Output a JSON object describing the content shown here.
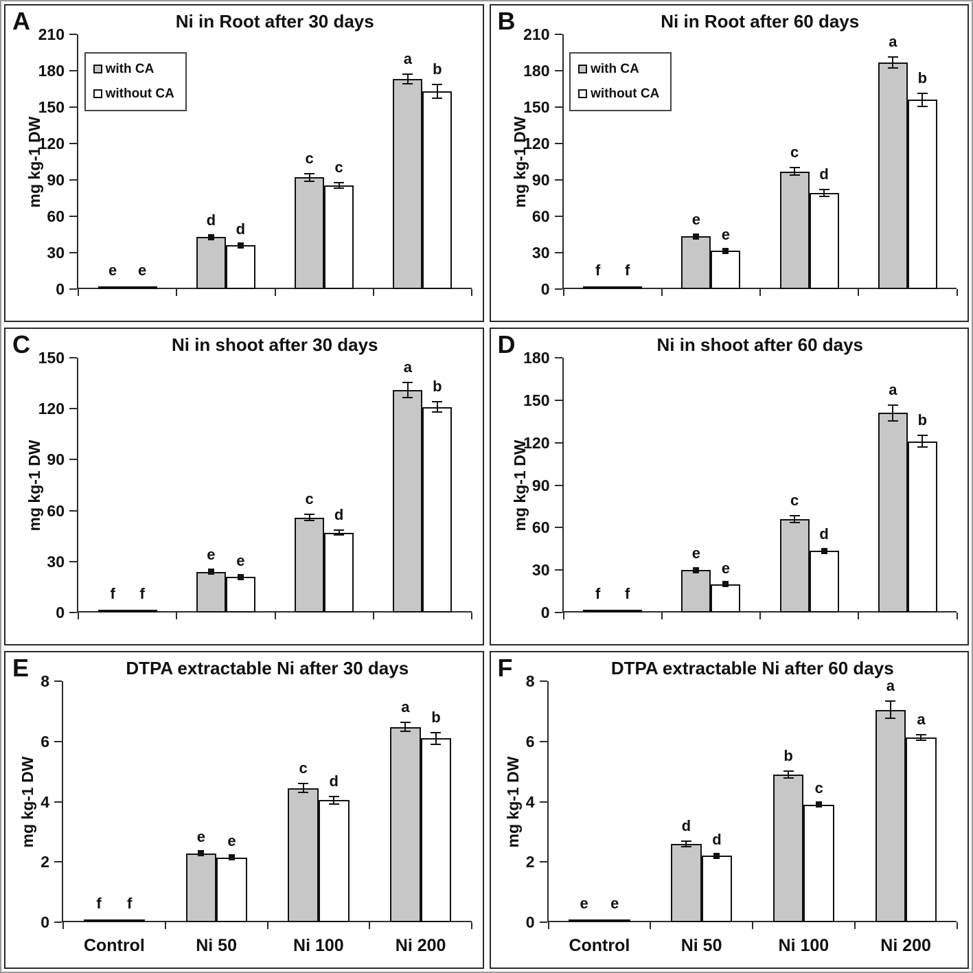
{
  "figure": {
    "panel_letters": [
      "A",
      "B",
      "C",
      "D",
      "E",
      "F"
    ]
  },
  "legend": {
    "items": [
      {
        "label": "with CA",
        "fill": "#c7c7c7"
      },
      {
        "label": "without CA",
        "fill": "#ffffff"
      }
    ]
  },
  "colors": {
    "with_ca_fill": "#c7c7c7",
    "without_ca_fill": "#ffffff",
    "bar_border": "#111111",
    "axis": "#2b2b2b",
    "text": "#111111"
  },
  "chart_data": [
    {
      "id": "A",
      "type": "bar",
      "title": "Ni in Root after 30 days",
      "ylabel": "mg kg-1 DW",
      "ylim": [
        0,
        210
      ],
      "ytick_step": 30,
      "grid": false,
      "categories": [
        "Control",
        "Ni 50",
        "Ni 100",
        "Ni 200"
      ],
      "show_x_labels": false,
      "show_legend": true,
      "legend_position": "upper-left",
      "series": [
        {
          "name": "with CA",
          "values": [
            0.5,
            43,
            92,
            173
          ],
          "errors": [
            0,
            1.2,
            3,
            4
          ],
          "letters": [
            "e",
            "d",
            "c",
            "a"
          ]
        },
        {
          "name": "without CA",
          "values": [
            0.5,
            36,
            85.5,
            163
          ],
          "errors": [
            0,
            0.8,
            2.5,
            5.5
          ],
          "letters": [
            "e",
            "d",
            "c",
            "b"
          ]
        }
      ]
    },
    {
      "id": "B",
      "type": "bar",
      "title": "Ni in Root after 60 days",
      "ylabel": "mg kg-1 DW",
      "ylim": [
        0,
        210
      ],
      "ytick_step": 30,
      "grid": false,
      "categories": [
        "Control",
        "Ni 50",
        "Ni 100",
        "Ni 200"
      ],
      "show_x_labels": false,
      "show_legend": true,
      "legend_position": "upper-left",
      "series": [
        {
          "name": "with CA",
          "values": [
            0.5,
            43.5,
            97,
            187
          ],
          "errors": [
            0,
            1.2,
            3.2,
            4.5
          ],
          "letters": [
            "f",
            "e",
            "c",
            "a"
          ]
        },
        {
          "name": "without CA",
          "values": [
            0.5,
            31.5,
            79,
            156
          ],
          "errors": [
            0,
            0.9,
            2.8,
            5.5
          ],
          "letters": [
            "f",
            "e",
            "d",
            "b"
          ]
        }
      ]
    },
    {
      "id": "C",
      "type": "bar",
      "title": "Ni in shoot after 30 days",
      "ylabel": "mg kg-1 DW",
      "ylim": [
        0,
        150
      ],
      "ytick_step": 30,
      "grid": false,
      "categories": [
        "Control",
        "Ni 50",
        "Ni 100",
        "Ni 200"
      ],
      "show_x_labels": false,
      "show_legend": false,
      "legend_position": "none",
      "series": [
        {
          "name": "with CA",
          "values": [
            0.5,
            24,
            56,
            131
          ],
          "errors": [
            0,
            1,
            2,
            4.5
          ],
          "letters": [
            "f",
            "e",
            "c",
            "a"
          ]
        },
        {
          "name": "without CA",
          "values": [
            0.5,
            21,
            47,
            121
          ],
          "errors": [
            0,
            0.5,
            1.5,
            3
          ],
          "letters": [
            "f",
            "e",
            "d",
            "b"
          ]
        }
      ]
    },
    {
      "id": "D",
      "type": "bar",
      "title": "Ni in shoot after 60 days",
      "ylabel": "mg kg-1 DW",
      "ylim": [
        0,
        180
      ],
      "ytick_step": 30,
      "grid": false,
      "categories": [
        "Control",
        "Ni 50",
        "Ni 100",
        "Ni 200"
      ],
      "show_x_labels": false,
      "show_legend": false,
      "legend_position": "none",
      "series": [
        {
          "name": "with CA",
          "values": [
            0.5,
            30,
            66,
            141
          ],
          "errors": [
            0,
            1.2,
            2.5,
            5.5
          ],
          "letters": [
            "f",
            "e",
            "c",
            "a"
          ]
        },
        {
          "name": "without CA",
          "values": [
            0.5,
            20,
            43.5,
            121
          ],
          "errors": [
            0,
            0.6,
            1.2,
            4
          ],
          "letters": [
            "f",
            "e",
            "d",
            "b"
          ]
        }
      ]
    },
    {
      "id": "E",
      "type": "bar",
      "title": "DTPA extractable Ni after 30 days",
      "ylabel": "mg kg-1 DW",
      "ylim": [
        0,
        8
      ],
      "ytick_step": 2,
      "grid": false,
      "categories": [
        "Control",
        "Ni 50",
        "Ni 100",
        "Ni 200"
      ],
      "show_x_labels": true,
      "show_legend": false,
      "legend_position": "none",
      "series": [
        {
          "name": "with CA",
          "values": [
            0.05,
            2.28,
            4.45,
            6.48
          ],
          "errors": [
            0,
            0.05,
            0.15,
            0.15
          ],
          "letters": [
            "f",
            "e",
            "c",
            "a"
          ]
        },
        {
          "name": "without CA",
          "values": [
            0.04,
            2.15,
            4.05,
            6.1
          ],
          "errors": [
            0,
            0.04,
            0.13,
            0.2
          ],
          "letters": [
            "f",
            "e",
            "d",
            "b"
          ]
        }
      ]
    },
    {
      "id": "F",
      "type": "bar",
      "title": "DTPA extractable Ni after 60 days",
      "ylabel": "mg kg-1 DW",
      "ylim": [
        0,
        8
      ],
      "ytick_step": 2,
      "grid": false,
      "categories": [
        "Control",
        "Ni 50",
        "Ni 100",
        "Ni 200"
      ],
      "show_x_labels": true,
      "show_legend": false,
      "legend_position": "none",
      "series": [
        {
          "name": "with CA",
          "values": [
            0.05,
            2.6,
            4.9,
            7.05
          ],
          "errors": [
            0,
            0.1,
            0.12,
            0.28
          ],
          "letters": [
            "e",
            "d",
            "b",
            "a"
          ]
        },
        {
          "name": "without CA",
          "values": [
            0.04,
            2.2,
            3.9,
            6.13
          ],
          "errors": [
            0,
            0.04,
            0.05,
            0.1
          ],
          "letters": [
            "e",
            "d",
            "c",
            "a"
          ]
        }
      ]
    }
  ]
}
